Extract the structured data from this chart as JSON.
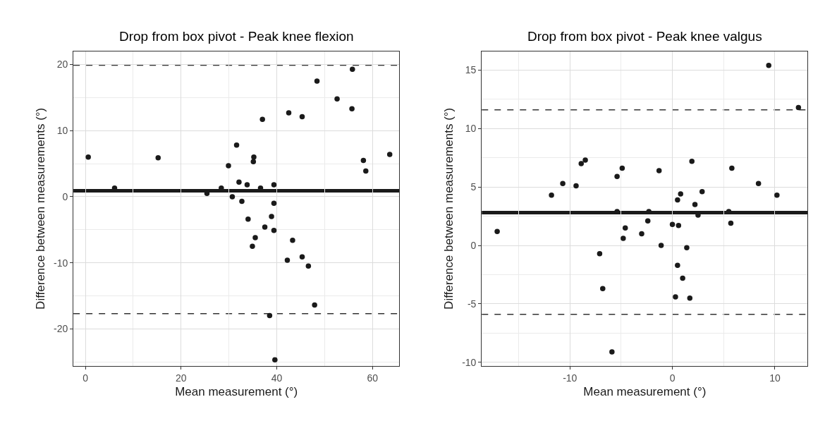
{
  "chart_data": [
    {
      "type": "scatter",
      "title": "Drop from box pivot - Peak knee flexion",
      "xlabel": "Mean measurement (°)",
      "ylabel": "Difference between measurements (°)",
      "xlim": [
        -2.5,
        65.6
      ],
      "xticks": [
        0,
        20,
        40,
        60
      ],
      "ylim": [
        -25.6,
        22.0
      ],
      "yticks": [
        -20,
        -10,
        0,
        10,
        20
      ],
      "grid": true,
      "marker": "circle",
      "series": [
        {
          "color": "#1a1a1a",
          "x": [
            0.6,
            6.1,
            15.2,
            25.4,
            28.4,
            29.9,
            30.7,
            31.6,
            32.1,
            32.7,
            33.8,
            34.0,
            35.1,
            35.2,
            36.6,
            37.0,
            38.9,
            39.4,
            39.4,
            42.5,
            45.3,
            48.4,
            52.6,
            55.7,
            55.8,
            58.1,
            58.6,
            63.6,
            37.5,
            39.4,
            35.5,
            34.9,
            43.3,
            42.2,
            45.3,
            46.6,
            47.9,
            38.5,
            39.6
          ],
          "values": [
            6.0,
            1.3,
            5.9,
            0.5,
            1.3,
            4.7,
            0.0,
            7.8,
            2.2,
            -0.7,
            1.8,
            -3.4,
            5.3,
            6.0,
            1.3,
            11.7,
            -3.0,
            1.8,
            -1.0,
            12.7,
            12.1,
            17.5,
            14.8,
            13.3,
            19.3,
            5.5,
            3.9,
            6.4,
            -4.6,
            -5.1,
            -6.2,
            -7.5,
            -6.6,
            -9.6,
            -9.1,
            -10.5,
            -16.4,
            -18.0,
            -24.7
          ]
        }
      ],
      "ref_lines": [
        {
          "axis": "y",
          "value": 0.9,
          "color": "#1a1a1a",
          "line_style": "solid"
        },
        {
          "axis": "y",
          "value": 19.9,
          "color": "#333333",
          "line_style": "dashed"
        },
        {
          "axis": "y",
          "value": -17.7,
          "color": "#333333",
          "line_style": "dashed"
        }
      ]
    },
    {
      "type": "scatter",
      "title": "Drop from box pivot - Peak knee valgus",
      "xlabel": "Mean measurement (°)",
      "ylabel": "Difference between measurements (°)",
      "xlim": [
        -18.6,
        13.2
      ],
      "xticks": [
        -10,
        0,
        10
      ],
      "ylim": [
        -10.3,
        16.6
      ],
      "yticks": [
        -10,
        -5,
        0,
        5,
        10,
        15
      ],
      "grid": true,
      "marker": "circle",
      "series": [
        {
          "color": "#1a1a1a",
          "x": [
            9.4,
            12.3,
            -8.5,
            -8.9,
            1.9,
            -4.9,
            -1.3,
            5.8,
            -5.4,
            -10.7,
            -9.4,
            8.4,
            -11.8,
            10.2,
            2.9,
            0.8,
            0.5,
            2.2,
            -5.4,
            -2.3,
            5.5,
            2.5,
            -17.1,
            -2.4,
            0.0,
            0.6,
            5.7,
            -4.6,
            -3.0,
            -4.8,
            -1.1,
            1.4,
            -7.1,
            0.5,
            1.0,
            -6.8,
            0.3,
            1.7,
            -5.9
          ],
          "values": [
            15.4,
            11.8,
            7.3,
            7.0,
            7.2,
            6.6,
            6.4,
            6.6,
            5.9,
            5.3,
            5.1,
            5.3,
            4.3,
            4.3,
            4.6,
            4.4,
            3.9,
            3.5,
            2.9,
            2.9,
            2.9,
            2.6,
            1.2,
            2.1,
            1.8,
            1.7,
            1.9,
            1.5,
            1.0,
            0.6,
            0.0,
            -0.2,
            -0.7,
            -1.7,
            -2.8,
            -3.7,
            -4.4,
            -4.5,
            -9.1
          ]
        }
      ],
      "ref_lines": [
        {
          "axis": "y",
          "value": 2.8,
          "color": "#1a1a1a",
          "line_style": "solid"
        },
        {
          "axis": "y",
          "value": 11.6,
          "color": "#333333",
          "line_style": "dashed"
        },
        {
          "axis": "y",
          "value": -5.9,
          "color": "#333333",
          "line_style": "dashed"
        }
      ]
    }
  ]
}
